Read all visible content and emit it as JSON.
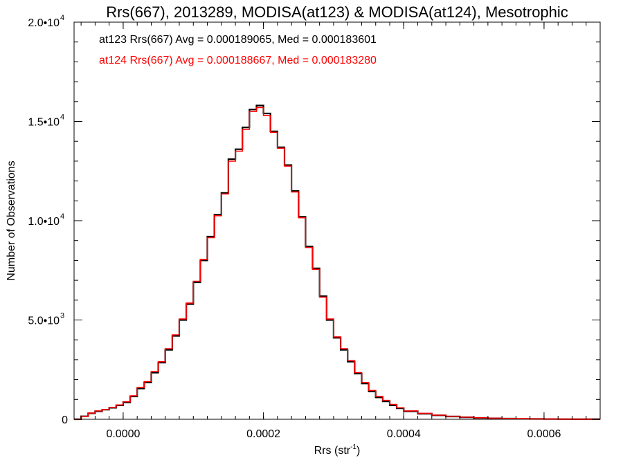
{
  "chart_data": {
    "type": "line",
    "title": "Rrs(667), 2013289, MODISA(at123) & MODISA(at124), Mesotrophic",
    "xlabel": {
      "base": "Rrs (str",
      "sup": "-1",
      "close": ")"
    },
    "ylabel": "Number of Observations",
    "xlim": [
      -7e-05,
      0.00068
    ],
    "ylim": [
      0,
      20000
    ],
    "x_ticks": [
      {
        "value": 0.0,
        "label": "0.0000"
      },
      {
        "value": 0.0002,
        "label": "0.0002"
      },
      {
        "value": 0.0004,
        "label": "0.0004"
      },
      {
        "value": 0.0006,
        "label": "0.0006"
      }
    ],
    "y_ticks": [
      {
        "value": 0,
        "mant": "0",
        "exp": ""
      },
      {
        "value": 5000,
        "mant": "5.0•10",
        "exp": "3"
      },
      {
        "value": 10000,
        "mant": "1.0•10",
        "exp": "4"
      },
      {
        "value": 15000,
        "mant": "1.5•10",
        "exp": "4"
      },
      {
        "value": 20000,
        "mant": "2.0•10",
        "exp": "4"
      }
    ],
    "grid": false,
    "legend_position": "top-left",
    "annotations": [
      {
        "text": "at123 Rrs(667) Avg = 0.000189065, Med = 0.000183601",
        "color": "#000000"
      },
      {
        "text": "at124 Rrs(667) Avg = 0.000188667, Med = 0.000183280",
        "color": "#ff0000"
      }
    ],
    "series": [
      {
        "color": "#000000",
        "x": [
          -7e-05,
          -6e-05,
          -5e-05,
          -4e-05,
          -3e-05,
          -2e-05,
          -1e-05,
          0.0,
          1e-05,
          2e-05,
          3e-05,
          4e-05,
          5e-05,
          6e-05,
          7e-05,
          8e-05,
          9e-05,
          0.0001,
          0.00011,
          0.00012,
          0.00013,
          0.00014,
          0.00015,
          0.00016,
          0.00017,
          0.00018,
          0.00019,
          0.0002,
          0.00021,
          0.00022,
          0.00023,
          0.00024,
          0.00025,
          0.00026,
          0.00027,
          0.00028,
          0.00029,
          0.0003,
          0.00031,
          0.00032,
          0.00033,
          0.00034,
          0.00035,
          0.00036,
          0.00037,
          0.00038,
          0.00039,
          0.0004,
          0.00042,
          0.00044,
          0.00046,
          0.00048,
          0.0005,
          0.00052,
          0.00054,
          0.00056,
          0.00058,
          0.0006,
          0.00062,
          0.00064,
          0.00066,
          0.00068
        ],
        "values": [
          0,
          150,
          300,
          400,
          480,
          580,
          700,
          850,
          1150,
          1550,
          1850,
          2350,
          2850,
          3500,
          4200,
          5000,
          5800,
          6900,
          8000,
          9200,
          10300,
          11400,
          13100,
          13600,
          14700,
          15600,
          15800,
          15400,
          14500,
          13700,
          12800,
          11500,
          10200,
          8700,
          7600,
          6200,
          5000,
          4100,
          3500,
          2900,
          2300,
          1800,
          1400,
          1100,
          900,
          700,
          550,
          400,
          280,
          200,
          140,
          100,
          70,
          50,
          35,
          25,
          18,
          12,
          8,
          5,
          3,
          2
        ]
      },
      {
        "color": "#ff0000",
        "x": [
          -7e-05,
          -6e-05,
          -5e-05,
          -4e-05,
          -3e-05,
          -2e-05,
          -1e-05,
          0.0,
          1e-05,
          2e-05,
          3e-05,
          4e-05,
          5e-05,
          6e-05,
          7e-05,
          8e-05,
          9e-05,
          0.0001,
          0.00011,
          0.00012,
          0.00013,
          0.00014,
          0.00015,
          0.00016,
          0.00017,
          0.00018,
          0.00019,
          0.0002,
          0.00021,
          0.00022,
          0.00023,
          0.00024,
          0.00025,
          0.00026,
          0.00027,
          0.00028,
          0.00029,
          0.0003,
          0.00031,
          0.00032,
          0.00033,
          0.00034,
          0.00035,
          0.00036,
          0.00037,
          0.00038,
          0.00039,
          0.0004,
          0.00042,
          0.00044,
          0.00046,
          0.00048,
          0.0005,
          0.00052,
          0.00054,
          0.00056,
          0.00058,
          0.0006,
          0.00062,
          0.00064,
          0.00066,
          0.00068
        ],
        "values": [
          0,
          150,
          310,
          420,
          490,
          590,
          720,
          880,
          1180,
          1600,
          1900,
          2400,
          2900,
          3550,
          4250,
          5050,
          5850,
          6950,
          8050,
          9150,
          10250,
          11350,
          13000,
          13500,
          14600,
          15500,
          15700,
          15300,
          14450,
          13650,
          12750,
          11450,
          10150,
          8650,
          7550,
          6150,
          5050,
          4150,
          3550,
          2950,
          2350,
          1850,
          1450,
          1150,
          950,
          750,
          580,
          420,
          300,
          210,
          150,
          105,
          75,
          55,
          38,
          27,
          19,
          13,
          9,
          6,
          4,
          2
        ]
      }
    ]
  }
}
